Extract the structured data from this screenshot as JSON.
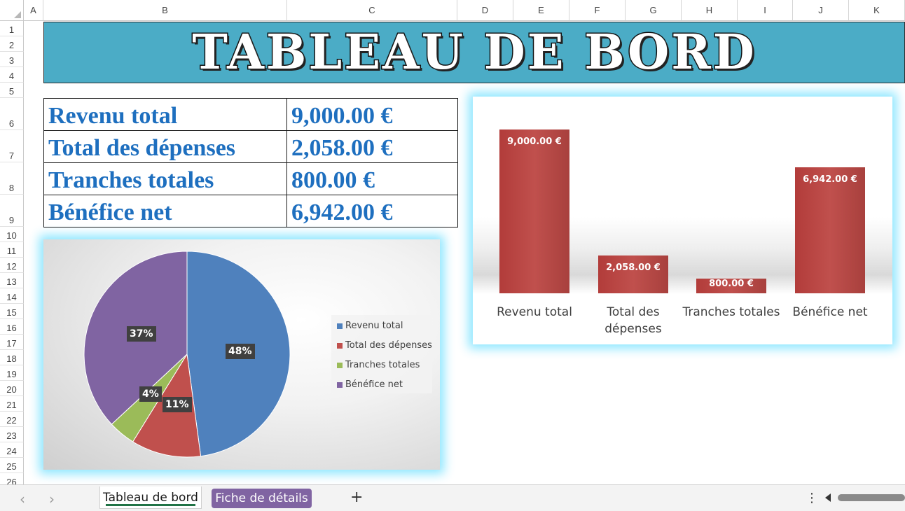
{
  "column_headers": [
    "A",
    "B",
    "C",
    "D",
    "E",
    "F",
    "G",
    "H",
    "I",
    "J",
    "K"
  ],
  "row_headers": [
    "1",
    "2",
    "3",
    "4",
    "5",
    "6",
    "7",
    "8",
    "9",
    "10",
    "11",
    "12",
    "13",
    "14",
    "15",
    "16",
    "17",
    "18",
    "19",
    "20",
    "21",
    "22",
    "23",
    "24",
    "25",
    "26"
  ],
  "title": "Tableau de bord",
  "summary": {
    "rows": [
      {
        "label": "Revenu total",
        "value": "9,000.00 €"
      },
      {
        "label": "Total des dépenses",
        "value": "2,058.00 €"
      },
      {
        "label": "Tranches totales",
        "value": "800.00 €"
      },
      {
        "label": "Bénéfice net",
        "value": "6,942.00 €"
      }
    ]
  },
  "chart_data": [
    {
      "type": "bar",
      "categories": [
        "Revenu total",
        "Total des dépenses",
        "Tranches totales",
        "Bénéfice net"
      ],
      "category_display": [
        [
          "Revenu total"
        ],
        [
          "Total des",
          "dépenses"
        ],
        [
          "Tranches totales"
        ],
        [
          "Bénéfice net"
        ]
      ],
      "values": [
        9000,
        2058,
        800,
        6942
      ],
      "data_labels": [
        "9,000.00 €",
        "2,058.00 €",
        "800.00 €",
        "6,942.00 €"
      ],
      "ylim": [
        0,
        10000
      ],
      "color": "#c0504d",
      "legend": "none",
      "grid": false
    },
    {
      "type": "pie",
      "labels": [
        "Revenu total",
        "Total des dépenses",
        "Tranches totales",
        "Bénéfice net"
      ],
      "values": [
        9000,
        2058,
        800,
        6942
      ],
      "percent_labels": [
        "48%",
        "11%",
        "4%",
        "37%"
      ],
      "colors": [
        "#4f81bd",
        "#c0504d",
        "#9bbb59",
        "#8064a2"
      ],
      "legend": "right"
    }
  ],
  "sheet_tabs": {
    "active": "Tableau de bord",
    "second": "Fiche de détails",
    "add_label": "+",
    "more_label": "⋮",
    "prev_label": "‹",
    "next_label": "›"
  }
}
